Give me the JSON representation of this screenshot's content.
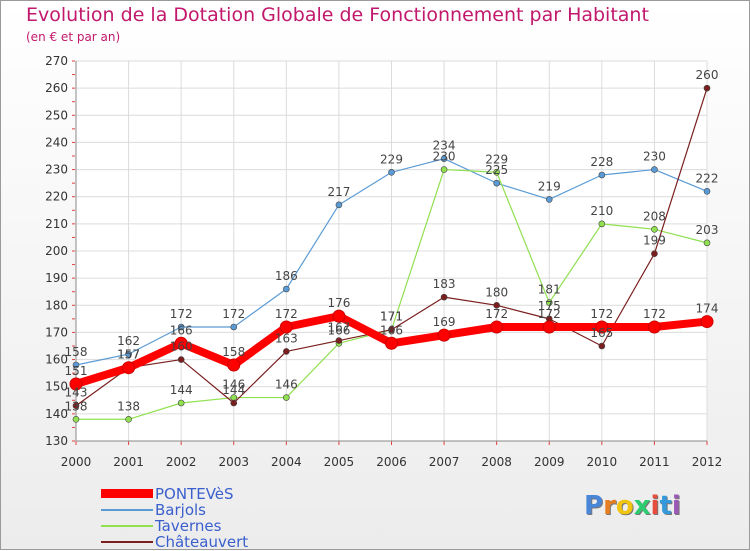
{
  "title": "Evolution de la Dotation Globale de Fonctionnement par Habitant",
  "subtitle": "(en € et par an)",
  "logo": {
    "text": "Proxiti",
    "letters": [
      "P",
      "r",
      "o",
      "x",
      "i",
      "t",
      "i"
    ],
    "colors": [
      "#4a86d8",
      "#e67e22",
      "#f1c40f",
      "#2ecc71",
      "#e74c3c",
      "#3498db",
      "#9b59b6"
    ]
  },
  "chart_data": {
    "type": "line",
    "title": "Evolution de la Dotation Globale de Fonctionnement par Habitant",
    "subtitle": "(en € et par an)",
    "x": [
      "2000",
      "2001",
      "2002",
      "2003",
      "2004",
      "2005",
      "2006",
      "2007",
      "2008",
      "2009",
      "2010",
      "2011",
      "2012"
    ],
    "ylim": [
      130,
      270
    ],
    "yticks": [
      130,
      140,
      150,
      160,
      170,
      180,
      190,
      200,
      210,
      220,
      230,
      240,
      250,
      260,
      270
    ],
    "grid": true,
    "legend_position": "bottom-left",
    "series": [
      {
        "name": "PONTEVèS",
        "color": "#ff0000",
        "width": 8,
        "values": [
          151,
          157,
          166,
          158,
          172,
          176,
          166,
          169,
          172,
          172,
          172,
          172,
          174
        ],
        "labels": [
          "151",
          "157",
          "166",
          "158",
          "172",
          "176",
          "166",
          "169",
          "172",
          "172",
          "172",
          "172",
          "174"
        ]
      },
      {
        "name": "Barjols",
        "color": "#5b9bd5",
        "width": 1.2,
        "values": [
          158,
          162,
          172,
          172,
          186,
          217,
          229,
          234,
          225,
          219,
          228,
          230,
          222
        ],
        "labels": [
          "158",
          "162",
          "172",
          "172",
          "186",
          "217",
          "229",
          "234",
          "225",
          "219",
          "228",
          "230",
          "222"
        ]
      },
      {
        "name": "Tavernes",
        "color": "#90e050",
        "width": 1.2,
        "values": [
          138,
          138,
          144,
          146,
          146,
          166,
          171,
          230,
          229,
          181,
          210,
          208,
          203
        ],
        "labels": [
          "138",
          "138",
          "144",
          "146",
          "146",
          "166",
          "171",
          "230",
          "229",
          "181",
          "210",
          "208",
          "203"
        ]
      },
      {
        "name": "Châteauvert",
        "color": "#7b1e1e",
        "width": 1.2,
        "values": [
          143,
          157,
          160,
          144,
          163,
          167,
          171,
          183,
          180,
          175,
          165,
          199,
          260
        ],
        "labels": [
          "143",
          "157",
          "160",
          "144",
          "163",
          "167",
          "171",
          "183",
          "180",
          "175",
          "165",
          "199",
          "260"
        ]
      }
    ]
  }
}
